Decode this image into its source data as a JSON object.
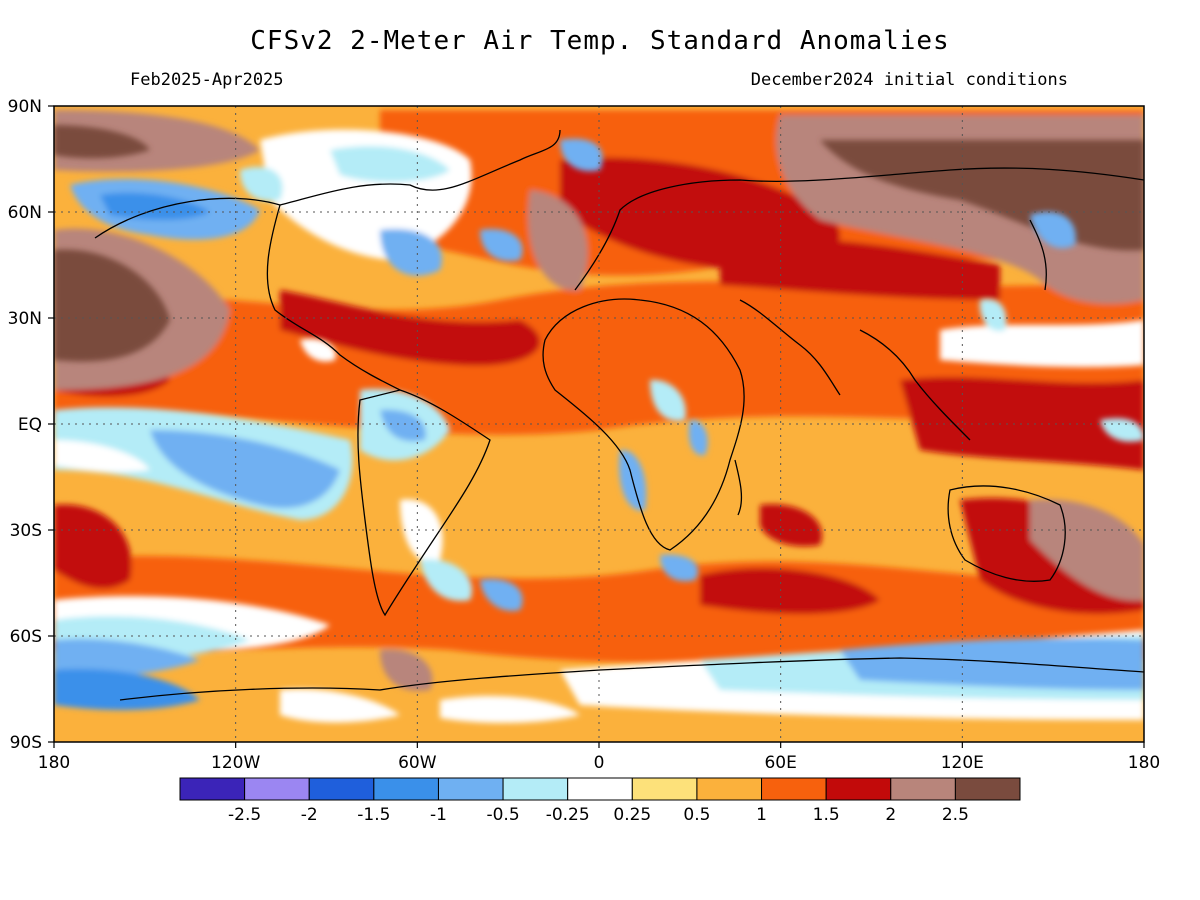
{
  "header": {
    "title": "CFSv2 2-Meter Air Temp. Standard Anomalies",
    "period": "Feb2025-Apr2025",
    "init": "December2024 initial conditions"
  },
  "map": {
    "lat_labels": [
      "90N",
      "60N",
      "30N",
      "EQ",
      "30S",
      "60S",
      "90S"
    ],
    "lon_labels": [
      "180",
      "120W",
      "60W",
      "0",
      "60E",
      "120E",
      "180"
    ],
    "grid_lines": "dotted"
  },
  "colorbar": {
    "colors": [
      "#3b24b8",
      "#9b86f2",
      "#1f5fdc",
      "#3a90ea",
      "#6fb0f2",
      "#b4ecf7",
      "#ffffff",
      "#fde17a",
      "#fbb13c",
      "#f7610d",
      "#c20a0a",
      "#b8857b",
      "#7a4b3e"
    ],
    "tick_labels": [
      "-2.5",
      "-2",
      "-1.5",
      "-1",
      "-0.5",
      "-0.25",
      "0.25",
      "0.5",
      "1",
      "1.5",
      "2",
      "2.5"
    ]
  }
}
